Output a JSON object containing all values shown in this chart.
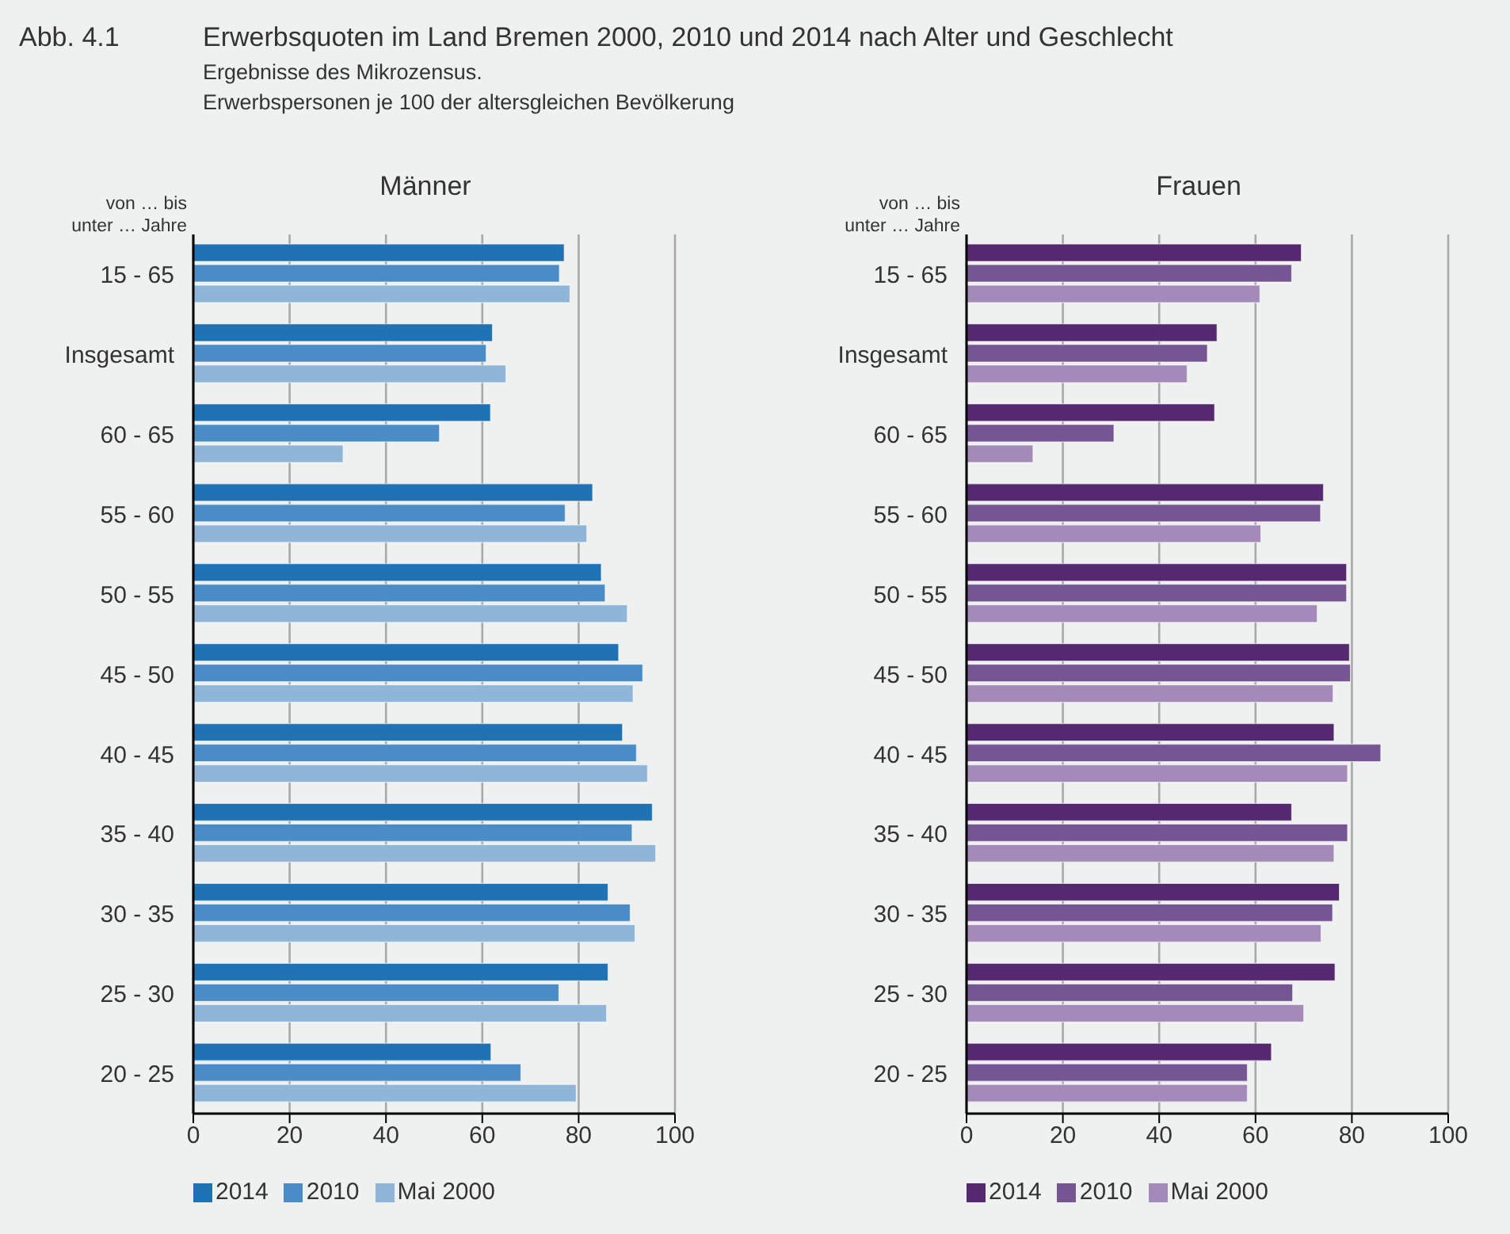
{
  "chart_data": [
    {
      "type": "bar",
      "orientation": "horizontal",
      "title": "Männer",
      "ylabel": "von … bis\nunter … Jahre",
      "annotations": [
        "Abb. 4.1",
        "Erwerbsquoten im Land Bremen 2000, 2010 und 2014 nach Alter und Geschlecht",
        "Ergebnisse des Mikrozensus.",
        "Erwerbspersonen je 100 der altersgleichen Bevölkerung"
      ],
      "categories": [
        "15 - 65",
        "Insgesamt",
        "60 - 65",
        "55 - 60",
        "50 - 55",
        "45 - 50",
        "40 - 45",
        "35 - 40",
        "30 - 35",
        "25 - 30",
        "20 - 25"
      ],
      "series": [
        {
          "name": "2014",
          "color": "#1f72b4",
          "values": [
            77.0,
            62.1,
            61.7,
            82.9,
            84.7,
            88.3,
            89.1,
            95.3,
            86.1,
            86.1,
            61.8
          ]
        },
        {
          "name": "2010",
          "color": "#4a8cc6",
          "values": [
            76.0,
            60.8,
            51.1,
            77.2,
            85.5,
            93.3,
            92.0,
            91.1,
            90.7,
            75.9,
            68.0
          ]
        },
        {
          "name": "Mai 2000",
          "color": "#8fb6d8",
          "values": [
            78.2,
            64.9,
            31.1,
            81.7,
            90.1,
            91.3,
            94.3,
            96.0,
            91.7,
            85.8,
            79.5
          ]
        }
      ],
      "xlim": [
        0,
        100
      ],
      "xticks": [
        0,
        20,
        40,
        60,
        80,
        100
      ],
      "grid": "x",
      "legend": "bottom left"
    },
    {
      "type": "bar",
      "orientation": "horizontal",
      "title": "Frauen",
      "ylabel": "von … bis\nunter … Jahre",
      "categories": [
        "15 - 65",
        "Insgesamt",
        "60 - 65",
        "55 - 60",
        "50 - 55",
        "45 - 50",
        "40 - 45",
        "35 - 40",
        "30 - 35",
        "25 - 30",
        "20 - 25"
      ],
      "series": [
        {
          "name": "2014",
          "color": "#55296f",
          "values": [
            69.5,
            52.0,
            51.5,
            74.1,
            78.9,
            79.5,
            76.3,
            67.5,
            77.4,
            76.5,
            63.3
          ]
        },
        {
          "name": "2010",
          "color": "#765593",
          "values": [
            67.5,
            50.0,
            30.6,
            73.5,
            78.9,
            79.7,
            86.0,
            79.1,
            76.0,
            67.7,
            58.3
          ]
        },
        {
          "name": "Mai 2000",
          "color": "#a38ab8",
          "values": [
            60.9,
            45.8,
            13.8,
            61.1,
            72.8,
            76.1,
            79.1,
            76.3,
            73.6,
            70.0,
            58.3
          ]
        }
      ],
      "xlim": [
        0,
        100
      ],
      "xticks": [
        0,
        20,
        40,
        60,
        80,
        100
      ],
      "grid": "x",
      "legend": "bottom left"
    }
  ]
}
